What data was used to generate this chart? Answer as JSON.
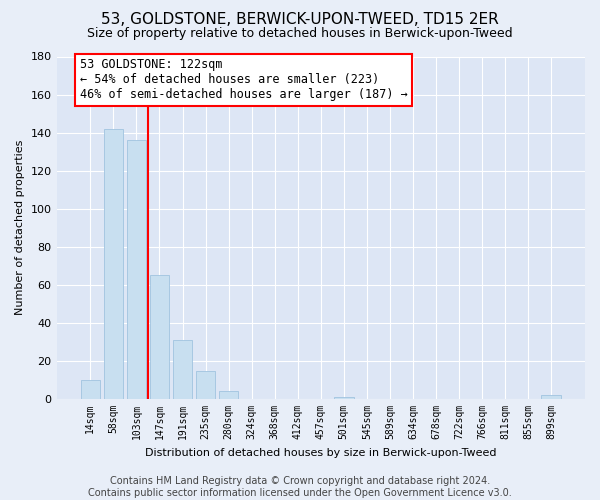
{
  "title": "53, GOLDSTONE, BERWICK-UPON-TWEED, TD15 2ER",
  "subtitle": "Size of property relative to detached houses in Berwick-upon-Tweed",
  "xlabel": "Distribution of detached houses by size in Berwick-upon-Tweed",
  "ylabel": "Number of detached properties",
  "bar_labels": [
    "14sqm",
    "58sqm",
    "103sqm",
    "147sqm",
    "191sqm",
    "235sqm",
    "280sqm",
    "324sqm",
    "368sqm",
    "412sqm",
    "457sqm",
    "501sqm",
    "545sqm",
    "589sqm",
    "634sqm",
    "678sqm",
    "722sqm",
    "766sqm",
    "811sqm",
    "855sqm",
    "899sqm"
  ],
  "bar_heights": [
    10,
    142,
    136,
    65,
    31,
    15,
    4,
    0,
    0,
    0,
    0,
    1,
    0,
    0,
    0,
    0,
    0,
    0,
    0,
    0,
    2
  ],
  "bar_color": "#c8dff0",
  "bar_edge_color": "#a0c4e0",
  "vline_x": 2.5,
  "vline_color": "red",
  "ylim": [
    0,
    180
  ],
  "yticks": [
    0,
    20,
    40,
    60,
    80,
    100,
    120,
    140,
    160,
    180
  ],
  "annotation_title": "53 GOLDSTONE: 122sqm",
  "annotation_line1": "← 54% of detached houses are smaller (223)",
  "annotation_line2": "46% of semi-detached houses are larger (187) →",
  "footer_line1": "Contains HM Land Registry data © Crown copyright and database right 2024.",
  "footer_line2": "Contains public sector information licensed under the Open Government Licence v3.0.",
  "bg_color": "#e8eef8",
  "plot_bg_color": "#dde6f5",
  "title_fontsize": 11,
  "subtitle_fontsize": 9,
  "axis_fontsize": 8,
  "footer_fontsize": 7
}
